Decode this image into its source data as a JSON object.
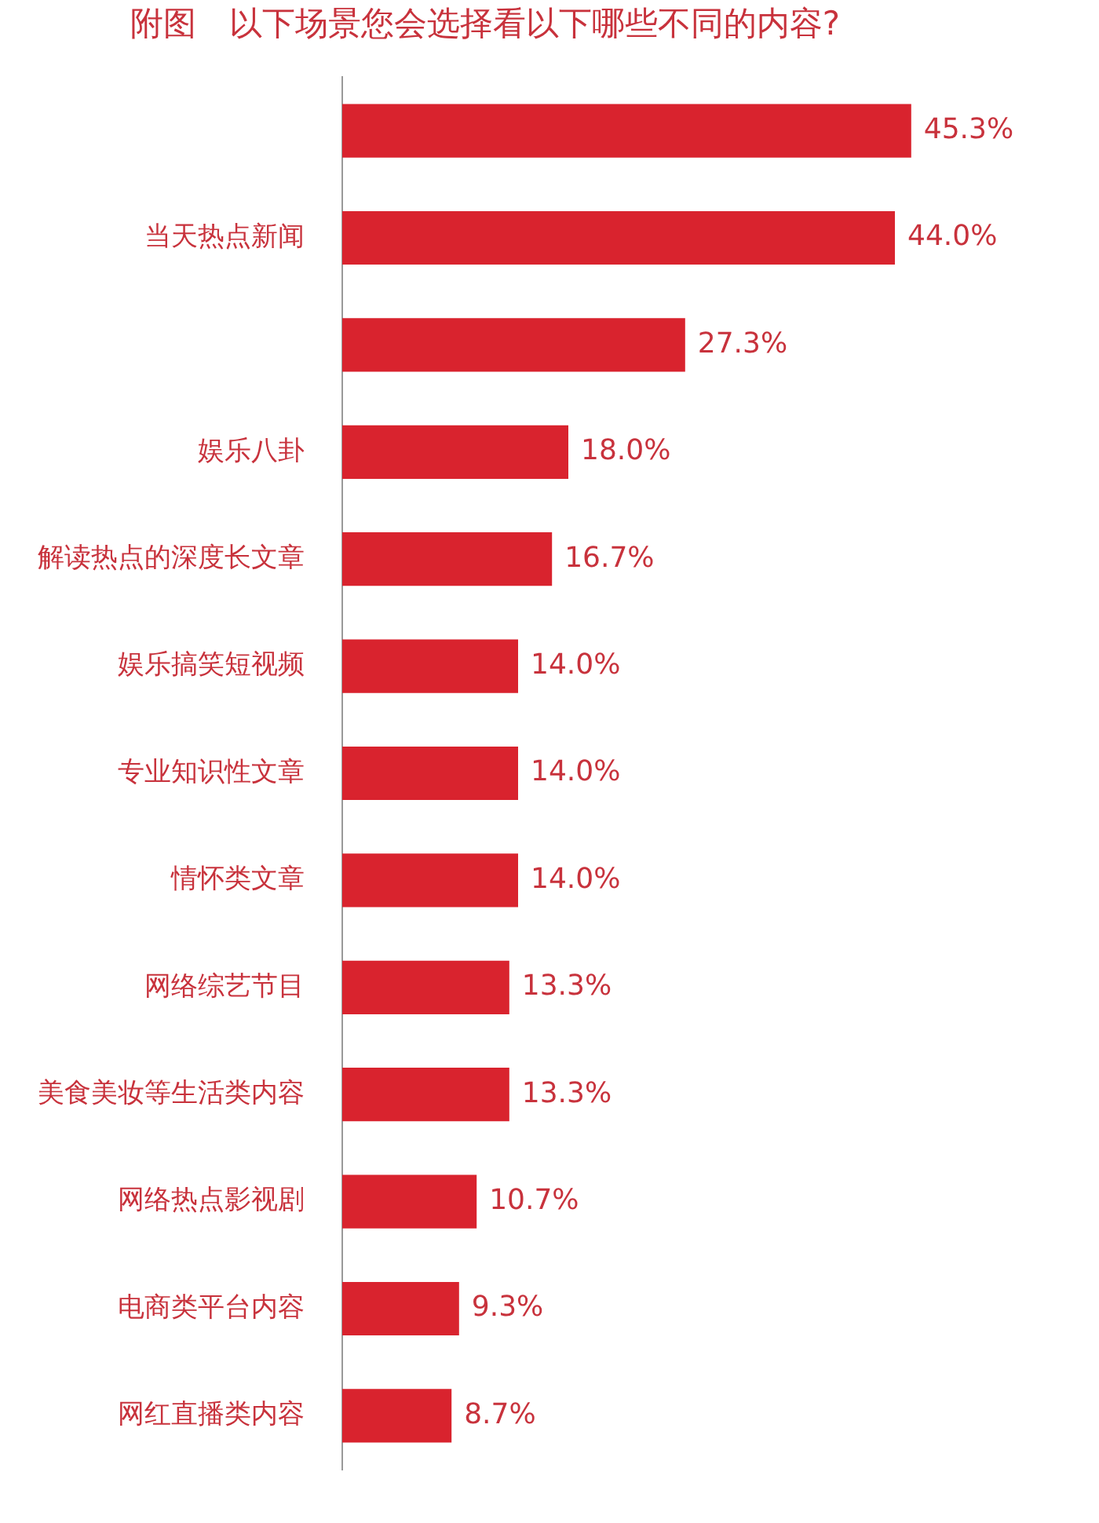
{
  "chart_data": {
    "type": "bar",
    "orientation": "horizontal",
    "title": "附图　以下场景您会选择看以下哪些不同的内容?",
    "categories": [
      null,
      "当天热点新闻",
      null,
      "娱乐八卦",
      "解读热点的深度长文章",
      "娱乐搞笑短视频",
      "专业知识性文章",
      "情怀类文章",
      "网络综艺节目",
      "美食美妆等生活类内容",
      "网络热点影视剧",
      "电商类平台内容",
      "网红直播类内容"
    ],
    "values": [
      45.3,
      44.0,
      27.3,
      18.0,
      16.7,
      14.0,
      14.0,
      14.0,
      13.3,
      13.3,
      10.7,
      9.3,
      8.7
    ],
    "value_labels": [
      "45.3%",
      "44.0%",
      "27.3%",
      "18.0%",
      "16.7%",
      "14.0%",
      "14.0%",
      "14.0%",
      "13.3%",
      "13.3%",
      "10.7%",
      "9.3%",
      "8.7%"
    ],
    "color": "#d9232e",
    "legend": false
  }
}
